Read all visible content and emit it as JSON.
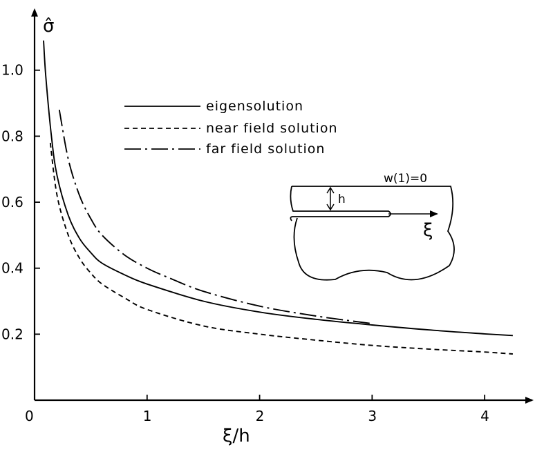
{
  "chart_data": {
    "type": "line",
    "title": "",
    "ylabel": "σ̂",
    "xlabel": "ξ/h",
    "xlim": [
      0,
      4.3
    ],
    "ylim": [
      0,
      1.15
    ],
    "xticks": [
      0,
      1,
      2,
      3,
      4
    ],
    "xtick_labels": [
      "0",
      "1",
      "2",
      "3",
      "4"
    ],
    "yticks": [
      0.2,
      0.4,
      0.6,
      0.8,
      1.0
    ],
    "ytick_labels": [
      "0.2",
      "0.4",
      "0.6",
      "0.8",
      "1.0"
    ],
    "grid": false,
    "legend_position": "top-center",
    "series": [
      {
        "name": "eigensolution",
        "style": "solid",
        "x": [
          0.08,
          0.1,
          0.15,
          0.2,
          0.3,
          0.4,
          0.5,
          0.6,
          0.8,
          1.0,
          1.5,
          2.0,
          2.5,
          3.0,
          3.5,
          4.0,
          4.25
        ],
        "y": [
          1.09,
          0.98,
          0.8,
          0.68,
          0.56,
          0.49,
          0.447,
          0.415,
          0.38,
          0.352,
          0.3,
          0.267,
          0.245,
          0.228,
          0.213,
          0.201,
          0.196
        ]
      },
      {
        "name": "near field solution",
        "style": "dashed",
        "x": [
          0.14,
          0.2,
          0.3,
          0.4,
          0.5,
          0.6,
          0.8,
          1.0,
          1.5,
          2.0,
          2.5,
          3.0,
          3.5,
          4.0,
          4.25
        ],
        "y": [
          0.78,
          0.62,
          0.5,
          0.43,
          0.385,
          0.352,
          0.31,
          0.275,
          0.225,
          0.2,
          0.182,
          0.166,
          0.155,
          0.146,
          0.14
        ]
      },
      {
        "name": "far field solution",
        "style": "dash-dot",
        "x": [
          0.22,
          0.3,
          0.4,
          0.5,
          0.6,
          0.8,
          1.0,
          1.2,
          1.5,
          2.0,
          2.5,
          3.0
        ],
        "y": [
          0.88,
          0.73,
          0.62,
          0.55,
          0.5,
          0.44,
          0.4,
          0.37,
          0.33,
          0.285,
          0.255,
          0.232
        ]
      }
    ],
    "inset": {
      "boundary_label": "w(1)=0",
      "gap_label": "h",
      "axis_label": "ξ"
    }
  }
}
